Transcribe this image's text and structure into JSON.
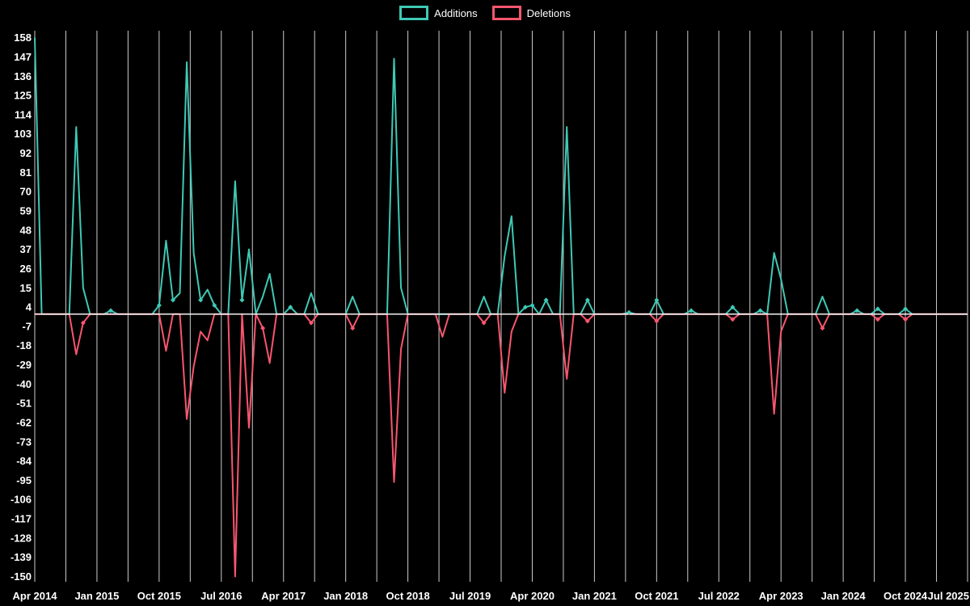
{
  "chart_data": {
    "type": "line",
    "title": "",
    "background": "#000000",
    "text_color": "#ffffff",
    "grid_color": "#ffffff",
    "legend_position": "top-center",
    "x_start": "2014-04",
    "months": 136,
    "grid_step_months": 4.5,
    "ylim": [
      -153,
      162
    ],
    "zero_line": true,
    "y_ticks": [
      158,
      147,
      136,
      125,
      114,
      103,
      92,
      81,
      70,
      59,
      48,
      37,
      26,
      15,
      4,
      -7,
      -18,
      -29,
      -40,
      -51,
      -62,
      -73,
      -84,
      -95,
      -106,
      -117,
      -128,
      -139,
      -150
    ],
    "x_tick_labels": [
      "Apr 2014",
      "Jan 2015",
      "Oct 2015",
      "Jul 2016",
      "Apr 2017",
      "Jan 2018",
      "Oct 2018",
      "Jul 2019",
      "Apr 2020",
      "Jan 2021",
      "Oct 2021",
      "Jul 2022",
      "Apr 2023",
      "Jan 2024",
      "Oct 2024",
      "Jul 2025"
    ],
    "x_tick_month_indices": [
      0,
      9,
      18,
      27,
      36,
      45,
      54,
      63,
      72,
      81,
      90,
      99,
      108,
      117,
      126,
      135
    ],
    "series": [
      {
        "name": "Additions",
        "color": "#3fc9b5",
        "baseline": 0,
        "points": {
          "0": 158,
          "6": 107,
          "7": 15,
          "11": 2,
          "18": 5,
          "19": 42,
          "20": 8,
          "21": 12,
          "22": 144,
          "23": 35,
          "24": 8,
          "25": 14,
          "26": 5,
          "29": 76,
          "30": 8,
          "31": 37,
          "33": 10,
          "34": 23,
          "37": 4,
          "40": 12,
          "46": 10,
          "52": 146,
          "53": 15,
          "65": 10,
          "68": 33,
          "69": 56,
          "71": 4,
          "72": 5,
          "74": 8,
          "77": 107,
          "80": 8,
          "86": 1,
          "90": 8,
          "95": 2,
          "101": 4,
          "105": 2,
          "107": 35,
          "108": 20,
          "114": 10,
          "119": 2,
          "122": 3,
          "126": 3
        }
      },
      {
        "name": "Deletions",
        "color": "#f9566e",
        "baseline": 0,
        "points": {
          "6": -23,
          "7": -5,
          "19": -21,
          "22": -60,
          "23": -30,
          "24": -10,
          "25": -15,
          "29": -150,
          "31": -65,
          "33": -8,
          "34": -28,
          "40": -5,
          "46": -8,
          "52": -96,
          "53": -20,
          "59": -13,
          "65": -5,
          "68": -45,
          "69": -10,
          "77": -37,
          "80": -4,
          "90": -4,
          "101": -3,
          "107": -57,
          "108": -10,
          "114": -8,
          "122": -3,
          "126": -3
        }
      }
    ]
  }
}
